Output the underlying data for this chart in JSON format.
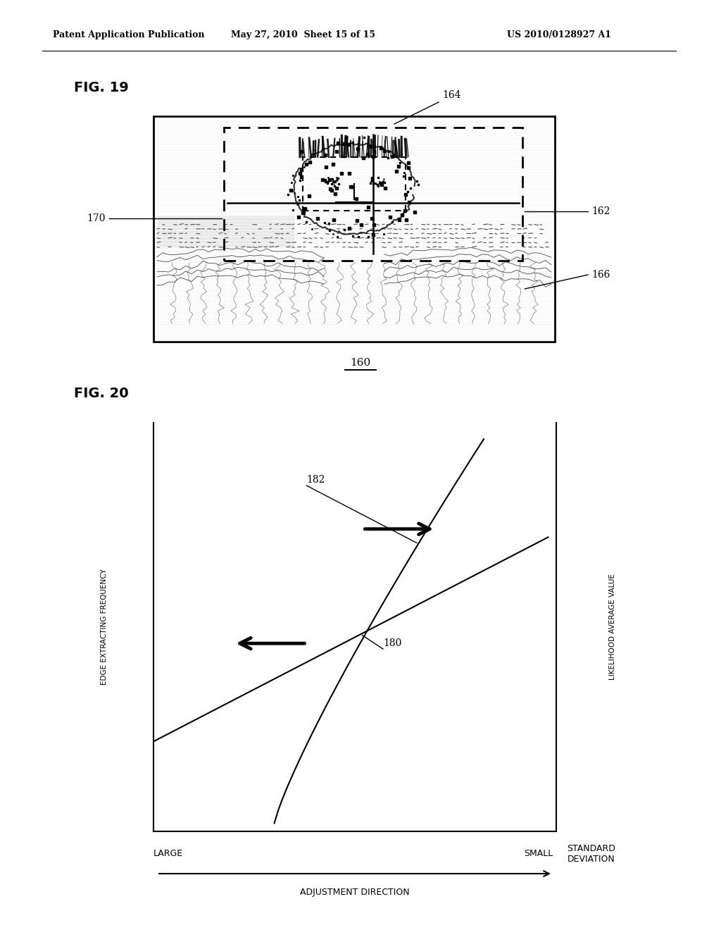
{
  "background_color": "#ffffff",
  "header_left": "Patent Application Publication",
  "header_mid": "May 27, 2010  Sheet 15 of 15",
  "header_right": "US 2010/0128927 A1",
  "fig19_label": "FIG. 19",
  "fig20_label": "FIG. 20",
  "label_160": "160",
  "label_162": "162",
  "label_164": "164",
  "label_166": "166",
  "label_170": "170",
  "label_180": "180",
  "label_182": "182",
  "left_yaxis_label": "EDGE EXTRACTING FREQUENCY",
  "right_yaxis_label": "LIKELIHOOD AVERAGE VALUE",
  "xaxis_large": "LARGE",
  "xaxis_small": "SMALL",
  "xaxis_std": "STANDARD\nDEVIATION",
  "xaxis_adj": "ADJUSTMENT DIRECTION"
}
